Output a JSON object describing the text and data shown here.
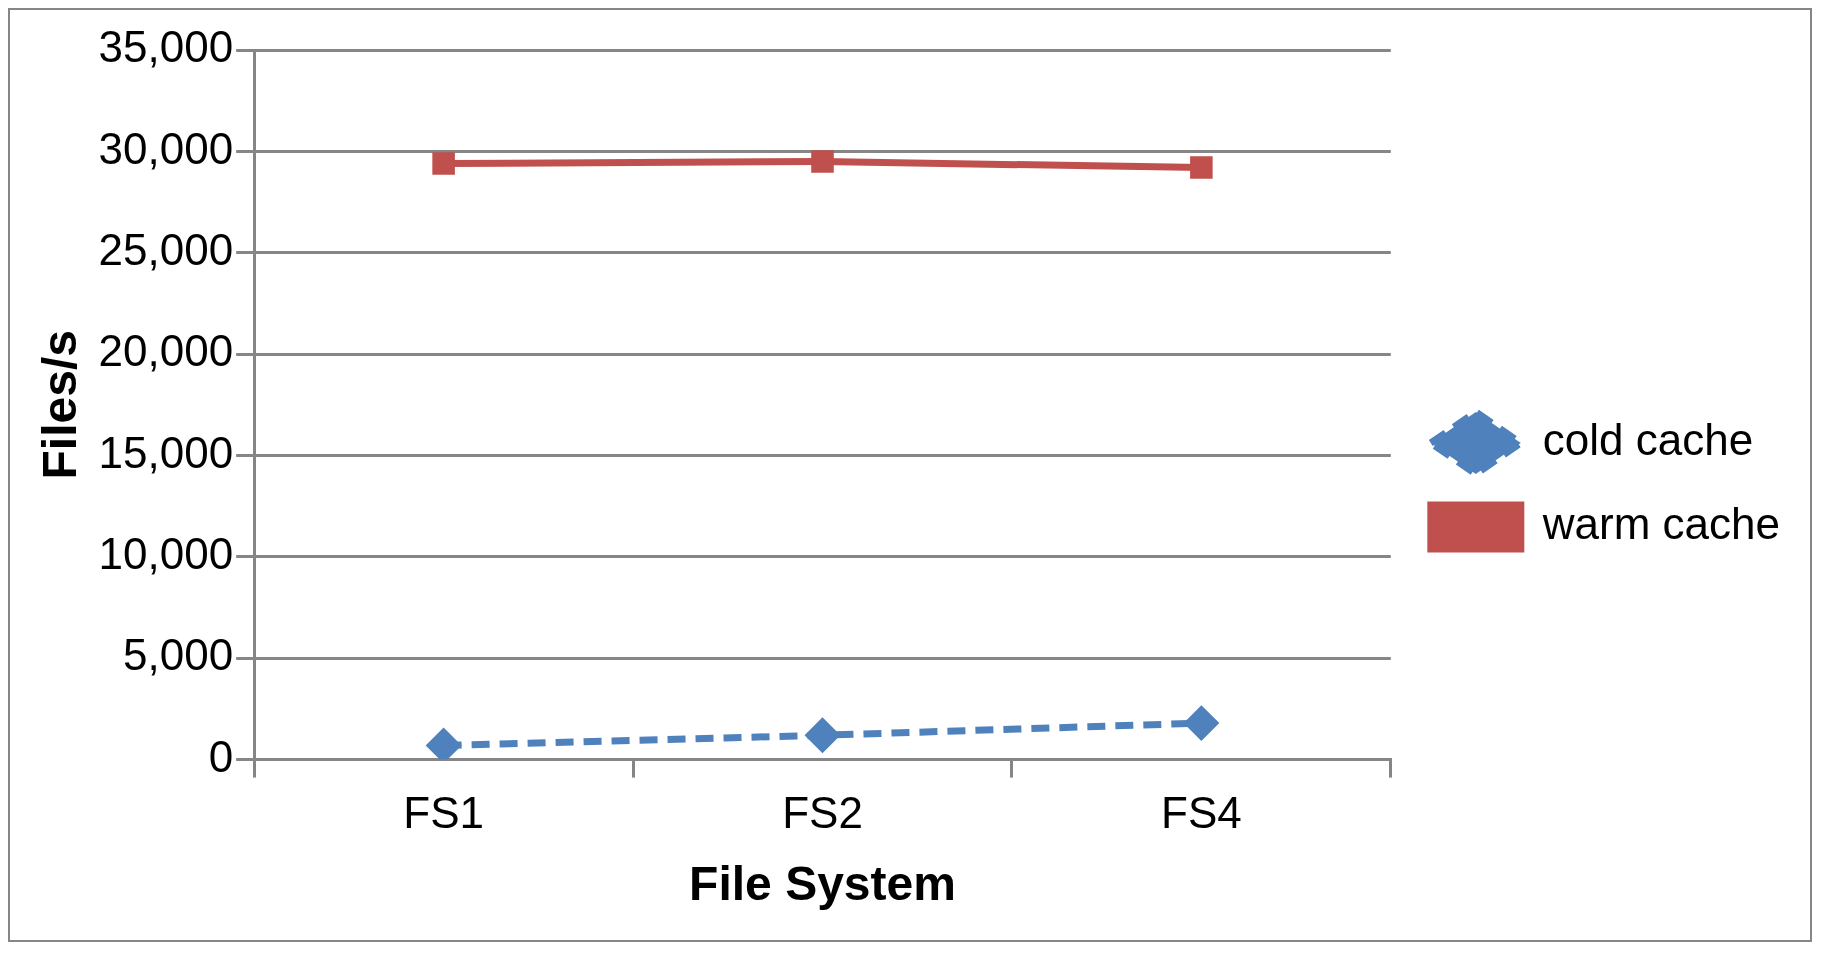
{
  "chart_data": {
    "type": "line",
    "xlabel": "File System",
    "ylabel": "Files/s",
    "categories": [
      "FS1",
      "FS2",
      "FS4"
    ],
    "series": [
      {
        "name": "cold cache",
        "color": "#4f81bd",
        "values": [
          700,
          1200,
          1800
        ],
        "marker": "diamond",
        "line_style": "dashed"
      },
      {
        "name": "warm cache",
        "color": "#c0504d",
        "values": [
          29400,
          29500,
          29200
        ],
        "marker": "square",
        "line_style": "solid"
      }
    ],
    "ylim": [
      0,
      35000
    ],
    "yticks": [
      {
        "value": 0,
        "label": "0"
      },
      {
        "value": 5000,
        "label": "5,000"
      },
      {
        "value": 10000,
        "label": "10,000"
      },
      {
        "value": 15000,
        "label": "15,000"
      },
      {
        "value": 20000,
        "label": "20,000"
      },
      {
        "value": 25000,
        "label": "25,000"
      },
      {
        "value": 30000,
        "label": "30,000"
      },
      {
        "value": 35000,
        "label": "35,000"
      }
    ],
    "grid": "y",
    "legend": "right"
  }
}
